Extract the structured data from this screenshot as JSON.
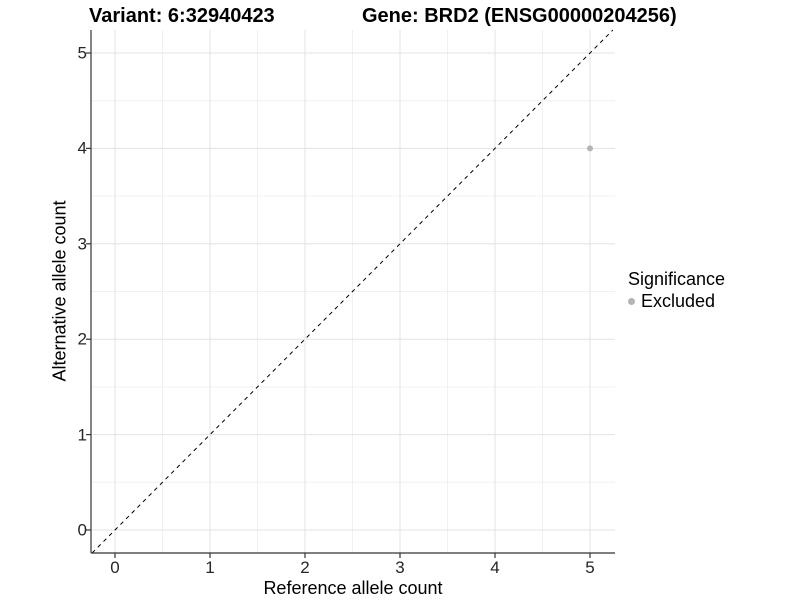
{
  "chart_data": {
    "type": "scatter",
    "title_left": "Variant: 6:32940423",
    "title_right": "Gene: BRD2 (ENSG00000204256)",
    "xlabel": "Reference allele count",
    "ylabel": "Alternative allele count",
    "xlim": [
      -0.25,
      5.26
    ],
    "ylim": [
      -0.24,
      5.24
    ],
    "x_ticks": [
      0,
      1,
      2,
      3,
      4,
      5
    ],
    "y_ticks": [
      0,
      1,
      2,
      3,
      4,
      5
    ],
    "x_minor": [
      0.5,
      1.5,
      2.5,
      3.5,
      4.5
    ],
    "y_minor": [
      0.5,
      1.5,
      2.5,
      3.5,
      4.5
    ],
    "grid": true,
    "reference_line": {
      "type": "identity y=x",
      "style": "dashed",
      "color": "#000000"
    },
    "series": [
      {
        "name": "Excluded",
        "color": "#b4b4b4",
        "point_radius": 3,
        "points": [
          {
            "x": 5,
            "y": 4
          }
        ]
      }
    ],
    "legend": {
      "position": "right",
      "title": "Significance",
      "items": [
        {
          "label": "Excluded",
          "color": "#b4b4b4"
        }
      ]
    },
    "colors": {
      "grid_major": "#e3e3e3",
      "grid_minor": "#f0f0f0",
      "axis": "#333333",
      "background": "#ffffff"
    }
  }
}
